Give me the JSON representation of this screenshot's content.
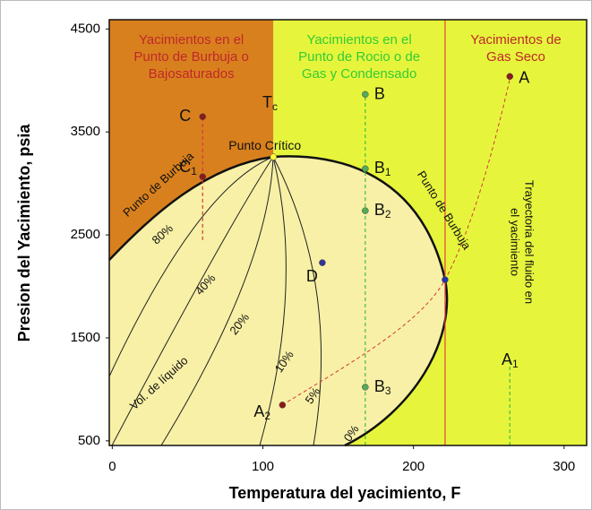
{
  "chart_data": {
    "type": "scatter",
    "xlabel": "Temperatura del yacimiento, F",
    "ylabel": "Presion del Yacimiento, psia",
    "xlim": [
      -2,
      315
    ],
    "ylim": [
      455,
      4590
    ],
    "xticks": [
      0,
      100,
      200,
      300
    ],
    "yticks": [
      500,
      1500,
      2500,
      3500,
      4500
    ],
    "regions": [
      {
        "x": [
          -2,
          107
        ],
        "color": "#d9801e",
        "text_color": "#c0282a",
        "text": [
          "Yacimientos en el",
          "Punto de Burbuja o",
          "Bajosaturados"
        ]
      },
      {
        "x": [
          107,
          221
        ],
        "color": "#e6f53c",
        "text_color": "#33cc33",
        "text": [
          "Yacimientos  en el",
          "Punto de Rocio o de",
          "Gas y Condensado"
        ]
      },
      {
        "x": [
          221,
          315
        ],
        "color": "#e6f53c",
        "text_color": "#c0282a",
        "text": [
          "Yacimientos  de",
          "Gas Seco"
        ]
      }
    ],
    "lines": [
      {
        "x": 221,
        "y": [
          455,
          4590
        ],
        "color": "#e8403a"
      },
      {
        "x": 60,
        "y": [
          2450,
          3648
        ],
        "color": "#d03a3a",
        "dashed": true
      },
      {
        "x": 168,
        "y": [
          455,
          3865
        ],
        "color": "#44bb44",
        "dashed": true
      },
      {
        "x": 264,
        "y": [
          455,
          1300
        ],
        "color": "#44bb44",
        "dashed": true
      }
    ],
    "points": [
      {
        "label": "C",
        "x": 60,
        "y": 3648,
        "color": "#8b1a1a"
      },
      {
        "label": "C",
        "sub": "1",
        "x": 60,
        "y": 3065,
        "color": "#8b1a1a"
      },
      {
        "label": "B",
        "x": 168,
        "y": 3865,
        "color": "#55aa55"
      },
      {
        "label": "B",
        "sub": "1",
        "x": 168,
        "y": 3143,
        "color": "#55aa55"
      },
      {
        "label": "B",
        "sub": "2",
        "x": 168,
        "y": 2735,
        "color": "#55aa55"
      },
      {
        "label": "B",
        "sub": "3",
        "x": 168,
        "y": 1022,
        "color": "#55aa55"
      },
      {
        "label": "D",
        "x": 139.5,
        "y": 2230,
        "color": "#333399"
      },
      {
        "label": "A",
        "x": 264,
        "y": 4039,
        "color": "#8b1a1a"
      },
      {
        "label": "A",
        "sub": "2",
        "x": 113,
        "y": 848,
        "color": "#8b1a1a"
      },
      {
        "label": "Punto Crítico",
        "x": 107,
        "y": 3257,
        "color": "#ffff33"
      },
      {
        "x": 221,
        "y": 2065,
        "color": "#2233aa"
      }
    ],
    "annotations": {
      "tc": {
        "label": "T",
        "sub": "c"
      },
      "a1": {
        "label": "A",
        "sub": "1"
      },
      "bubble_left": "Punto de Burbuja",
      "bubble_right": "Punto de Burbuja",
      "path": [
        "Trayectoria del fluido en",
        "el yacimiento"
      ],
      "volume": "Vol. de líquido",
      "quality": [
        "80%",
        "40%",
        "20%",
        "10%",
        "5%",
        "0%"
      ]
    }
  }
}
